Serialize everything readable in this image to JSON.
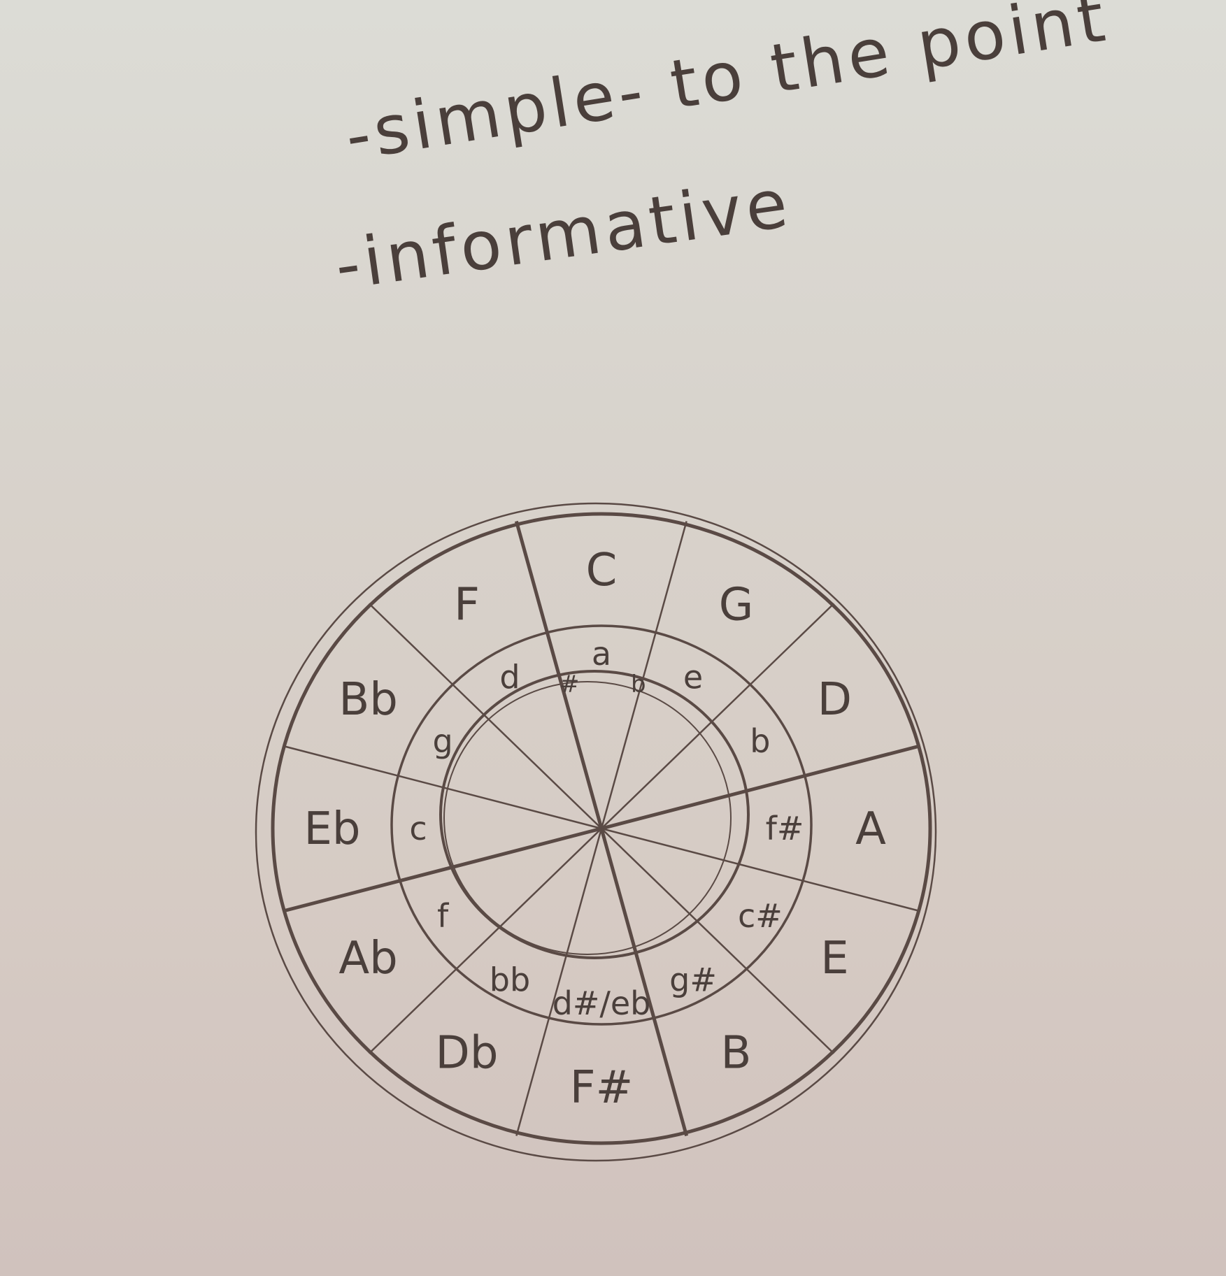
{
  "notes": {
    "line1": "-simple- to the point",
    "line2": "-informative"
  },
  "circle_of_fifths": {
    "major_keys": [
      "C",
      "G",
      "D",
      "A",
      "E",
      "B",
      "F#",
      "Db",
      "Ab",
      "Eb",
      "Bb",
      "F"
    ],
    "minor_keys": [
      "a",
      "e",
      "b",
      "f#",
      "c#",
      "g#",
      "d#/eb",
      "bb",
      "f",
      "c",
      "g",
      "d"
    ],
    "inner_labels": [
      "#",
      "b"
    ]
  },
  "colors": {
    "pencil": "#4a3f3b",
    "paper": "#d8d3cc"
  }
}
